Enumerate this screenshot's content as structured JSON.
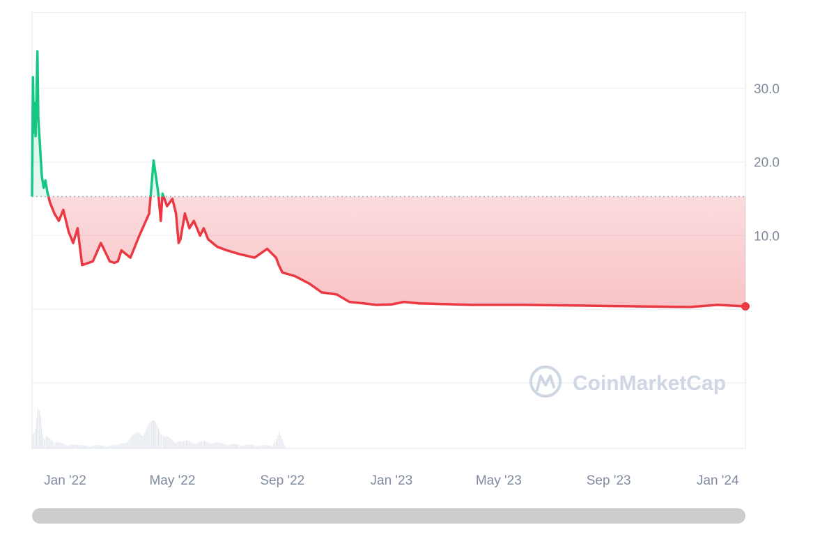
{
  "watermark": {
    "text": "CoinMarketCap",
    "icon": "coinmarketcap-logo"
  },
  "colors": {
    "up": "#16c784",
    "down": "#ea3943",
    "grid": "#eff2f5",
    "axis": "#808a9d",
    "volume": "#e5e9ef",
    "scrollbar": "#cccccc"
  },
  "chart_data": {
    "type": "line",
    "title": "",
    "xlabel": "",
    "ylabel": "",
    "x_range": [
      "2021-11-25",
      "2024-02-01"
    ],
    "ylim": [
      -10,
      40
    ],
    "y_ticks": [
      30.0,
      20.0,
      10.0
    ],
    "y_tick_labels": [
      "30.0",
      "20.0",
      "10.0"
    ],
    "x_ticks": [
      "2022-01-01",
      "2022-05-01",
      "2022-09-01",
      "2023-01-01",
      "2023-05-01",
      "2023-09-01",
      "2024-01-01"
    ],
    "x_tick_labels": [
      "Jan '22",
      "May '22",
      "Sep '22",
      "Jan '23",
      "May '23",
      "Sep '23",
      "Jan '24"
    ],
    "baseline": 15.3,
    "grid": true,
    "legend": "none",
    "price": {
      "x": [
        "2021-11-25",
        "2021-11-26",
        "2021-11-27",
        "2021-11-28",
        "2021-11-29",
        "2021-11-30",
        "2021-12-01",
        "2021-12-02",
        "2021-12-04",
        "2021-12-06",
        "2021-12-08",
        "2021-12-10",
        "2021-12-12",
        "2021-12-15",
        "2021-12-20",
        "2021-12-25",
        "2021-12-30",
        "2022-01-05",
        "2022-01-10",
        "2022-01-15",
        "2022-01-20",
        "2022-02-01",
        "2022-02-10",
        "2022-02-20",
        "2022-02-25",
        "2022-03-01",
        "2022-03-05",
        "2022-03-15",
        "2022-03-25",
        "2022-04-05",
        "2022-04-10",
        "2022-04-15",
        "2022-04-18",
        "2022-04-20",
        "2022-04-25",
        "2022-05-01",
        "2022-05-05",
        "2022-05-08",
        "2022-05-10",
        "2022-05-15",
        "2022-05-20",
        "2022-05-25",
        "2022-06-01",
        "2022-06-05",
        "2022-06-10",
        "2022-06-15",
        "2022-06-20",
        "2022-07-01",
        "2022-07-15",
        "2022-08-01",
        "2022-08-15",
        "2022-08-25",
        "2022-08-28",
        "2022-09-01",
        "2022-09-15",
        "2022-10-01",
        "2022-10-15",
        "2022-11-01",
        "2022-11-15",
        "2022-12-01",
        "2022-12-15",
        "2023-01-01",
        "2023-01-15",
        "2023-02-01",
        "2023-03-01",
        "2023-04-01",
        "2023-06-01",
        "2023-08-01",
        "2023-10-01",
        "2023-12-01",
        "2024-01-01",
        "2024-02-01"
      ],
      "y": [
        15.3,
        31.5,
        24.0,
        28.0,
        23.5,
        29.0,
        35.0,
        26.0,
        22.0,
        18.0,
        16.5,
        17.5,
        16.0,
        14.5,
        13.0,
        12.0,
        13.5,
        10.5,
        9.0,
        11.0,
        6.0,
        6.5,
        9.0,
        6.5,
        6.3,
        6.5,
        8.0,
        7.0,
        10.0,
        13.0,
        20.2,
        16.0,
        12.0,
        15.7,
        14.0,
        15.0,
        13.0,
        9.0,
        9.5,
        13.0,
        11.0,
        12.0,
        10.0,
        11.0,
        9.5,
        9.0,
        8.5,
        8.0,
        7.5,
        7.0,
        8.2,
        7.0,
        6.0,
        5.0,
        4.5,
        3.5,
        2.3,
        2.0,
        1.0,
        0.8,
        0.6,
        0.65,
        1.0,
        0.8,
        0.7,
        0.6,
        0.6,
        0.5,
        0.4,
        0.3,
        0.6,
        0.4
      ]
    },
    "volume": {
      "x": [
        "2021-11-25",
        "2021-11-28",
        "2021-12-01",
        "2021-12-05",
        "2021-12-10",
        "2021-12-20",
        "2022-01-15",
        "2022-03-01",
        "2022-04-10",
        "2022-04-20",
        "2022-05-10",
        "2022-06-15",
        "2022-07-15",
        "2022-08-20",
        "2022-08-28",
        "2022-09-05"
      ],
      "values": [
        0.3,
        0.5,
        0.95,
        0.4,
        0.2,
        0.1,
        0.05,
        0.05,
        0.45,
        0.2,
        0.12,
        0.1,
        0.06,
        0.05,
        0.25,
        0.02
      ]
    }
  }
}
